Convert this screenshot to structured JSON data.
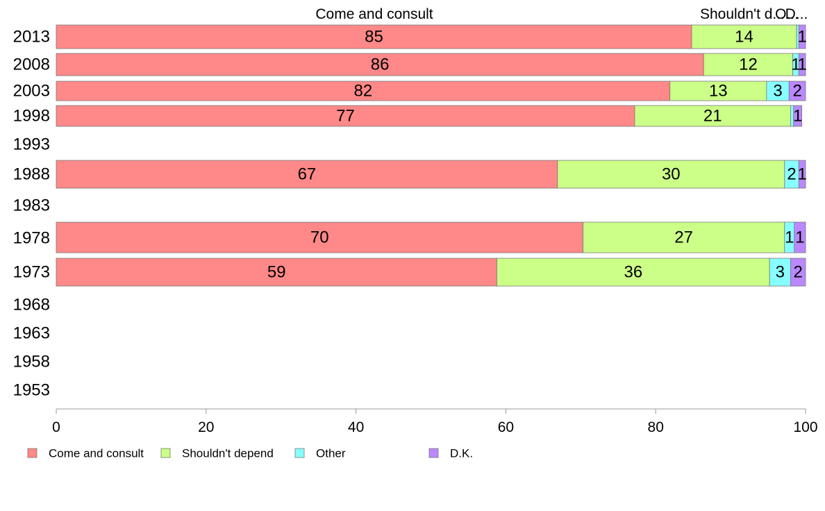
{
  "chart_data": {
    "type": "bar",
    "orientation": "horizontal",
    "stacked": true,
    "categories": [
      "2013",
      "2008",
      "2003",
      "1998",
      "1993",
      "1988",
      "1983",
      "1978",
      "1973",
      "1968",
      "1963",
      "1958",
      "1953"
    ],
    "series": [
      {
        "name": "Come and consult",
        "color": "#ff8888",
        "values": [
          84.8,
          86.4,
          81.9,
          77.2,
          null,
          66.9,
          null,
          70.3,
          58.8,
          null,
          null,
          null,
          null
        ]
      },
      {
        "name": "Shouldn't depend",
        "color": "#ccff88",
        "values": [
          14.0,
          11.9,
          12.9,
          20.8,
          null,
          30.3,
          null,
          26.9,
          36.4,
          null,
          null,
          null,
          null
        ]
      },
      {
        "name": "Other",
        "color": "#88ffff",
        "values": [
          0.3,
          0.8,
          3.0,
          0.4,
          null,
          1.9,
          null,
          1.3,
          2.8,
          null,
          null,
          null,
          null
        ]
      },
      {
        "name": "D.K.",
        "color": "#bb88ff",
        "values": [
          0.9,
          0.9,
          2.2,
          1.1,
          null,
          0.9,
          null,
          1.5,
          2.0,
          null,
          null,
          null,
          null
        ]
      }
    ],
    "data_labels": [
      [
        "85",
        "14",
        "",
        "1"
      ],
      [
        "86",
        "12",
        "1",
        "1"
      ],
      [
        "82",
        "13",
        "3",
        "2"
      ],
      [
        "77",
        "21",
        "",
        "1"
      ],
      [
        "",
        "",
        "",
        ""
      ],
      [
        "67",
        "30",
        "2",
        "1"
      ],
      [
        "",
        "",
        "",
        ""
      ],
      [
        "70",
        "27",
        "1",
        "1"
      ],
      [
        "59",
        "36",
        "3",
        "2"
      ],
      [
        "",
        "",
        "",
        ""
      ],
      [
        "",
        "",
        "",
        ""
      ],
      [
        "",
        "",
        "",
        ""
      ],
      [
        "",
        "",
        "",
        ""
      ]
    ],
    "top_labels": [
      "Come and consult",
      "Shouldn't d...",
      "O...",
      "D..."
    ],
    "xlim": [
      0,
      100
    ],
    "xticks": [
      0,
      20,
      40,
      60,
      80,
      100
    ],
    "legend_position": "bottom-left",
    "grid": false,
    "title": "",
    "xlabel": "",
    "ylabel": ""
  }
}
